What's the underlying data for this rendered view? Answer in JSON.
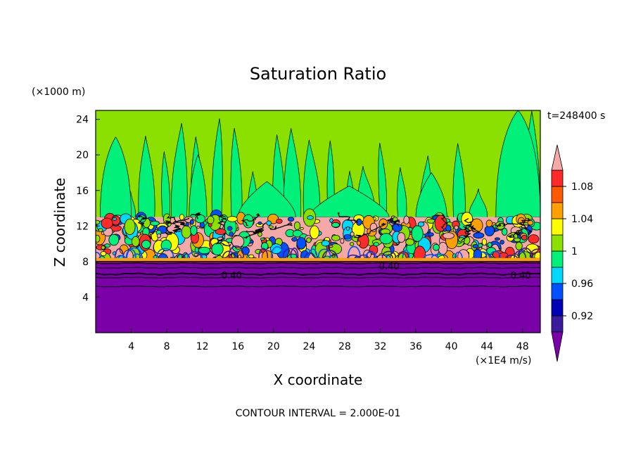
{
  "chart_data": {
    "type": "heatmap",
    "title": "Saturation Ratio",
    "xlabel": "X coordinate",
    "ylabel": "Z coordinate",
    "x_unit": "(×1E4 m/s)",
    "y_unit": "(×1000 m)",
    "time_label": "t=248400 s",
    "footer": "CONTOUR INTERVAL = 2.000E-01",
    "xlim": [
      0,
      50
    ],
    "ylim": [
      0,
      25
    ],
    "x_ticks": [
      "4",
      "8",
      "12",
      "16",
      "20",
      "24",
      "28",
      "32",
      "36",
      "40",
      "44",
      "48"
    ],
    "y_ticks": [
      "4",
      "8",
      "12",
      "16",
      "20",
      "24"
    ],
    "contour_labels": [
      {
        "text": "0.40",
        "x": 15.3,
        "y": 6.5
      },
      {
        "text": "0.40",
        "x": 33.0,
        "y": 7.5
      },
      {
        "text": "0.40",
        "x": 47.8,
        "y": 6.5
      }
    ],
    "colorbar": {
      "levels": [
        0.9,
        0.92,
        0.94,
        0.96,
        0.98,
        1.0,
        1.02,
        1.04,
        1.06,
        1.08,
        1.1
      ],
      "tick_labels": [
        {
          "value": 0.92,
          "text": "0.92"
        },
        {
          "value": 0.96,
          "text": "0.96"
        },
        {
          "value": 1.0,
          "text": "1"
        },
        {
          "value": 1.04,
          "text": "1.04"
        },
        {
          "value": 1.08,
          "text": "1.08"
        }
      ],
      "colors": [
        "#3c1a9c",
        "#0000b4",
        "#0050ff",
        "#00d8ff",
        "#00f07a",
        "#8ce000",
        "#ffff00",
        "#ffa000",
        "#ff5a00",
        "#ff2a2a",
        "#f4a8a8"
      ],
      "below_color": "#7a00a8",
      "above_color": "#f4a8a8"
    },
    "regions": {
      "dry_lower_layer_top": 7.3,
      "cloud_base": 8.0,
      "cloud_top": 13.0,
      "upper_colors": [
        "#00f07a",
        "#8ce000"
      ],
      "lower_color": "#7a00a8"
    }
  }
}
